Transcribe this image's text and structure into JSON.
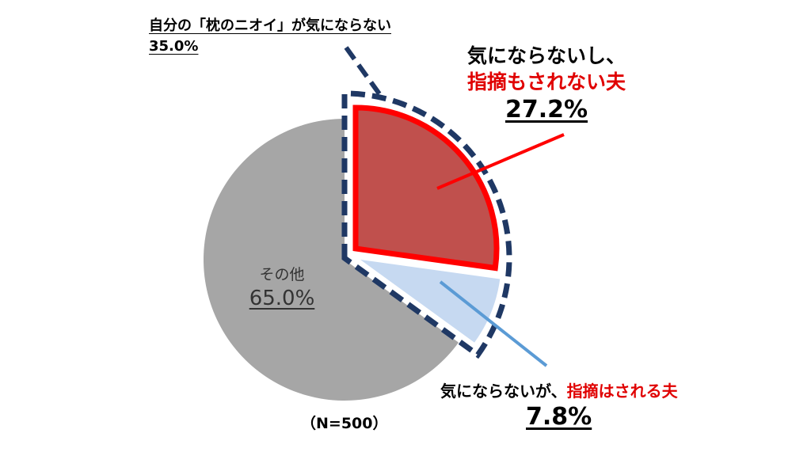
{
  "chart_data": {
    "type": "pie",
    "slices": [
      {
        "label": "気にならないし、指摘もされない夫",
        "value": 27.2,
        "color": "#C0504D",
        "display": "27.2%"
      },
      {
        "label": "気にならないが、指摘はされる夫",
        "value": 7.8,
        "color": "#C6D9F1",
        "display": "7.8%"
      },
      {
        "label": "その他",
        "value": 65.0,
        "color": "#A6A6A6",
        "display": "65.0%"
      }
    ],
    "group": {
      "label": "自分の「枕のニオイ」が気にならない",
      "value": 35.0,
      "display": "35.0%"
    },
    "sample_note": "（N=500）"
  },
  "labels": {
    "group_line1": "自分の「枕のニオイ」が気にならない",
    "group_pct": "35.0%",
    "red_line1": "気にならないし、",
    "red_line2": "指摘もされない夫",
    "red_pct": "27.2%",
    "blue_prefix": "気にならないが、",
    "blue_red": "指摘はされる夫",
    "blue_pct": "7.8%",
    "other_label": "その他",
    "other_pct": "65.0%",
    "n_note": "（N=500）"
  },
  "colors": {
    "red_outline": "#FF0000",
    "group_outline": "#1F3864",
    "blue_leader": "#5B9BD5",
    "red_text": "#E00000"
  }
}
